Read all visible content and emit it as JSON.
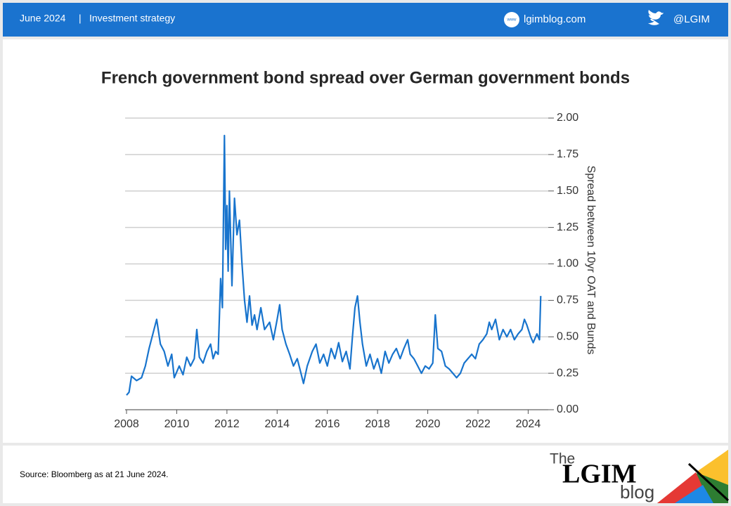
{
  "header": {
    "date": "June 2024",
    "separator": "|",
    "section": "Investment strategy",
    "website": "lgimblog.com",
    "twitter": "@LGIM"
  },
  "chart_data": {
    "type": "line",
    "title": "French government bond spread over German government bonds",
    "y_axis_label": "Spread between 10yr OAT and Bunds",
    "x": [
      2008.0,
      2008.1,
      2008.2,
      2008.4,
      2008.6,
      2008.75,
      2008.9,
      2009.05,
      2009.2,
      2009.35,
      2009.5,
      2009.65,
      2009.8,
      2009.9,
      2010.1,
      2010.25,
      2010.4,
      2010.55,
      2010.7,
      2010.8,
      2010.9,
      2011.05,
      2011.2,
      2011.35,
      2011.45,
      2011.55,
      2011.65,
      2011.75,
      2011.82,
      2011.9,
      2011.95,
      2012.0,
      2012.05,
      2012.1,
      2012.2,
      2012.3,
      2012.4,
      2012.5,
      2012.6,
      2012.7,
      2012.8,
      2012.9,
      2013.0,
      2013.1,
      2013.2,
      2013.35,
      2013.5,
      2013.7,
      2013.85,
      2014.0,
      2014.1,
      2014.2,
      2014.35,
      2014.5,
      2014.65,
      2014.8,
      2014.95,
      2015.05,
      2015.2,
      2015.4,
      2015.55,
      2015.7,
      2015.85,
      2016.0,
      2016.15,
      2016.3,
      2016.45,
      2016.6,
      2016.75,
      2016.9,
      2017.0,
      2017.1,
      2017.2,
      2017.3,
      2017.4,
      2017.55,
      2017.7,
      2017.85,
      2018.0,
      2018.15,
      2018.3,
      2018.45,
      2018.6,
      2018.75,
      2018.9,
      2019.05,
      2019.2,
      2019.3,
      2019.45,
      2019.6,
      2019.75,
      2019.9,
      2020.05,
      2020.2,
      2020.3,
      2020.4,
      2020.55,
      2020.7,
      2020.85,
      2021.0,
      2021.15,
      2021.3,
      2021.45,
      2021.6,
      2021.75,
      2021.9,
      2022.05,
      2022.2,
      2022.35,
      2022.45,
      2022.55,
      2022.7,
      2022.85,
      2023.0,
      2023.15,
      2023.3,
      2023.45,
      2023.6,
      2023.75,
      2023.85,
      2023.95,
      2024.1,
      2024.2,
      2024.35,
      2024.45,
      2024.5
    ],
    "series": [
      {
        "name": "Spread",
        "color": "#1874cd",
        "values": [
          0.1,
          0.12,
          0.23,
          0.2,
          0.22,
          0.3,
          0.42,
          0.52,
          0.62,
          0.45,
          0.4,
          0.3,
          0.38,
          0.22,
          0.3,
          0.24,
          0.36,
          0.3,
          0.35,
          0.55,
          0.36,
          0.32,
          0.4,
          0.45,
          0.35,
          0.4,
          0.38,
          0.9,
          0.7,
          1.88,
          1.1,
          1.4,
          0.95,
          1.5,
          0.85,
          1.45,
          1.2,
          1.3,
          1.0,
          0.75,
          0.6,
          0.78,
          0.58,
          0.65,
          0.55,
          0.7,
          0.55,
          0.6,
          0.48,
          0.62,
          0.72,
          0.55,
          0.45,
          0.38,
          0.3,
          0.35,
          0.25,
          0.18,
          0.3,
          0.4,
          0.45,
          0.32,
          0.38,
          0.3,
          0.42,
          0.35,
          0.46,
          0.33,
          0.4,
          0.28,
          0.5,
          0.7,
          0.78,
          0.6,
          0.45,
          0.3,
          0.38,
          0.28,
          0.35,
          0.25,
          0.4,
          0.32,
          0.38,
          0.42,
          0.35,
          0.42,
          0.48,
          0.38,
          0.35,
          0.3,
          0.25,
          0.3,
          0.28,
          0.32,
          0.65,
          0.42,
          0.4,
          0.3,
          0.28,
          0.25,
          0.22,
          0.25,
          0.32,
          0.35,
          0.38,
          0.35,
          0.45,
          0.48,
          0.52,
          0.6,
          0.55,
          0.62,
          0.48,
          0.55,
          0.5,
          0.55,
          0.48,
          0.52,
          0.55,
          0.62,
          0.58,
          0.5,
          0.46,
          0.52,
          0.48,
          0.78
        ]
      }
    ],
    "xlim": [
      2008,
      2024.8
    ],
    "xticks": [
      2008,
      2010,
      2012,
      2014,
      2016,
      2018,
      2020,
      2022,
      2024
    ],
    "ylim": [
      0,
      2
    ],
    "yticks": [
      {
        "value": 0,
        "label": "0.00"
      },
      0.25,
      {
        "value": 0.5,
        "label": "0.50"
      },
      0.75,
      {
        "value": 1,
        "label": "1.00"
      },
      1.25,
      {
        "value": 1.5,
        "label": "1.50"
      },
      1.75,
      {
        "value": 2,
        "label": "2.00"
      }
    ],
    "grid": true
  },
  "footer": {
    "source": "Source: Bloomberg as at 21 June 2024.",
    "logo_the": "The",
    "logo_lgim": "LGIM",
    "logo_blog": "blog"
  }
}
